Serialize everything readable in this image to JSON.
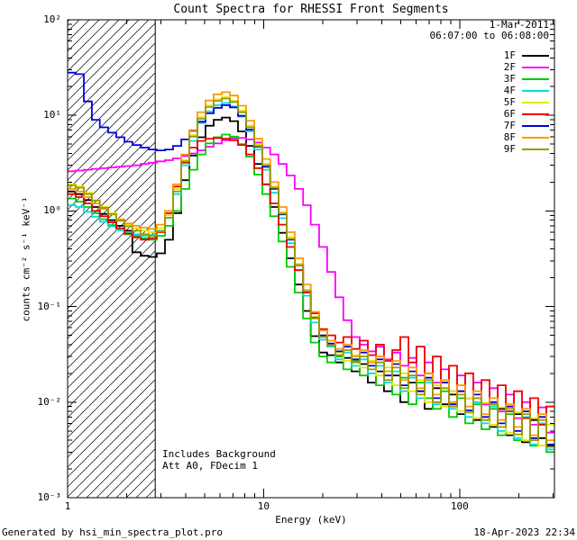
{
  "title": "Count Spectra for RHESSI Front Segments",
  "observation": {
    "date": "1-Mar-2011",
    "time_range": "06:07:00 to 06:08:00"
  },
  "annotations": {
    "line1": "Includes Background",
    "line2": "Att A0, FDecim 1"
  },
  "footer": {
    "left": "Generated by hsi_min_spectra_plot.pro",
    "right": "18-Apr-2023 22:34"
  },
  "chart_data": {
    "type": "line",
    "subtype": "histogram-step",
    "title": "Count Spectra for RHESSI Front Segments",
    "xlabel": "Energy (keV)",
    "ylabel": "counts cm⁻² s⁻¹ keV⁻¹",
    "xscale": "log",
    "yscale": "log",
    "xlim": [
      1,
      304.5
    ],
    "ylim": [
      0.001,
      100
    ],
    "x_ticks": [
      1,
      10,
      100
    ],
    "x_tick_labels": [
      "1",
      "10",
      "100"
    ],
    "y_ticks": [
      100,
      10,
      1,
      0.1,
      0.01,
      0.001
    ],
    "y_tick_labels": [
      "10²",
      "10¹",
      "10⁰",
      "10⁻¹",
      "10⁻²",
      "10⁻³"
    ],
    "grid": false,
    "legend_position": "top-right",
    "hatch_region": {
      "x_min": 1,
      "x_max": 2.8
    },
    "x_bin_edges": [
      1.0,
      1.1,
      1.21,
      1.33,
      1.46,
      1.61,
      1.77,
      1.95,
      2.14,
      2.36,
      2.59,
      2.85,
      3.14,
      3.45,
      3.8,
      4.18,
      4.59,
      5.05,
      5.56,
      6.12,
      6.73,
      7.4,
      8.14,
      8.95,
      9.85,
      10.8,
      11.9,
      13.1,
      14.4,
      15.9,
      17.4,
      19.2,
      21.1,
      23.2,
      25.5,
      28.1,
      30.9,
      34.0,
      37.4,
      41.1,
      45.3,
      49.8,
      54.8,
      60.2,
      66.3,
      72.9,
      80.2,
      88.2,
      97.0,
      106.7,
      117.4,
      129.1,
      142.0,
      156.2,
      171.9,
      189.1,
      208.0,
      228.8,
      251.6,
      276.8,
      304.5
    ],
    "series": [
      {
        "name": "1F",
        "color": "#000000",
        "values": [
          1.6,
          1.5,
          1.3,
          1.1,
          0.93,
          0.8,
          0.7,
          0.62,
          0.37,
          0.34,
          0.33,
          0.36,
          0.5,
          0.95,
          2.1,
          3.8,
          5.9,
          7.8,
          9.0,
          9.5,
          8.7,
          6.8,
          4.8,
          3.1,
          1.9,
          1.1,
          0.59,
          0.32,
          0.17,
          0.09,
          0.049,
          0.033,
          0.031,
          0.026,
          0.029,
          0.021,
          0.025,
          0.016,
          0.021,
          0.013,
          0.019,
          0.01,
          0.016,
          0.013,
          0.0085,
          0.014,
          0.0095,
          0.012,
          0.0075,
          0.011,
          0.0065,
          0.0095,
          0.0055,
          0.0085,
          0.0045,
          0.0075,
          0.0038,
          0.0065,
          0.0042,
          0.0035
        ]
      },
      {
        "name": "2F",
        "color": "#ff00ff",
        "values": [
          2.6,
          2.65,
          2.7,
          2.75,
          2.8,
          2.85,
          2.9,
          2.95,
          3.0,
          3.1,
          3.2,
          3.3,
          3.4,
          3.55,
          3.75,
          4.0,
          4.3,
          4.7,
          5.1,
          5.5,
          5.75,
          5.8,
          5.6,
          5.2,
          4.6,
          3.9,
          3.1,
          2.35,
          1.7,
          1.15,
          0.72,
          0.42,
          0.23,
          0.125,
          0.072,
          0.048,
          0.04,
          0.034,
          0.038,
          0.028,
          0.033,
          0.024,
          0.029,
          0.019,
          0.026,
          0.016,
          0.022,
          0.013,
          0.019,
          0.011,
          0.016,
          0.0095,
          0.014,
          0.008,
          0.012,
          0.0068,
          0.01,
          0.0058,
          0.0088,
          0.0048
        ]
      },
      {
        "name": "3F",
        "color": "#00cc00",
        "values": [
          1.35,
          1.25,
          1.1,
          0.95,
          0.82,
          0.71,
          0.63,
          0.57,
          0.55,
          0.52,
          0.5,
          0.55,
          0.7,
          1.0,
          1.7,
          2.7,
          3.9,
          5.1,
          5.9,
          6.3,
          6.0,
          5.0,
          3.7,
          2.4,
          1.5,
          0.88,
          0.48,
          0.26,
          0.14,
          0.075,
          0.042,
          0.03,
          0.026,
          0.03,
          0.022,
          0.027,
          0.019,
          0.024,
          0.015,
          0.021,
          0.012,
          0.018,
          0.0095,
          0.016,
          0.011,
          0.0085,
          0.013,
          0.007,
          0.011,
          0.006,
          0.0095,
          0.0052,
          0.0085,
          0.0045,
          0.0075,
          0.004,
          0.0068,
          0.0035,
          0.0058,
          0.003
        ]
      },
      {
        "name": "4F",
        "color": "#00dede",
        "values": [
          1.15,
          1.1,
          0.98,
          0.87,
          0.77,
          0.69,
          0.63,
          0.59,
          0.57,
          0.55,
          0.56,
          0.62,
          0.85,
          1.5,
          3.0,
          5.4,
          8.3,
          11.0,
          12.8,
          13.5,
          12.4,
          9.7,
          6.8,
          4.4,
          2.7,
          1.55,
          0.84,
          0.46,
          0.24,
          0.13,
          0.068,
          0.045,
          0.038,
          0.028,
          0.033,
          0.024,
          0.028,
          0.02,
          0.024,
          0.016,
          0.021,
          0.013,
          0.018,
          0.011,
          0.016,
          0.0095,
          0.014,
          0.0085,
          0.012,
          0.007,
          0.01,
          0.006,
          0.009,
          0.005,
          0.008,
          0.0042,
          0.007,
          0.0036,
          0.006,
          0.0032
        ]
      },
      {
        "name": "5F",
        "color": "#e6e600",
        "values": [
          1.9,
          1.8,
          1.55,
          1.3,
          1.1,
          0.95,
          0.82,
          0.72,
          0.66,
          0.62,
          0.6,
          0.66,
          0.9,
          1.7,
          3.4,
          6.2,
          9.6,
          12.7,
          14.7,
          15.5,
          14.2,
          11.2,
          7.8,
          5.0,
          3.1,
          1.8,
          0.97,
          0.53,
          0.28,
          0.15,
          0.078,
          0.05,
          0.04,
          0.033,
          0.027,
          0.031,
          0.023,
          0.027,
          0.019,
          0.023,
          0.015,
          0.02,
          0.013,
          0.017,
          0.01,
          0.015,
          0.009,
          0.013,
          0.008,
          0.011,
          0.0068,
          0.0098,
          0.0058,
          0.0088,
          0.0048,
          0.0078,
          0.004,
          0.0068,
          0.0035,
          0.0058
        ]
      },
      {
        "name": "6F",
        "color": "#ee0000",
        "values": [
          1.5,
          1.4,
          1.2,
          1.0,
          0.88,
          0.76,
          0.66,
          0.58,
          0.53,
          0.5,
          0.52,
          0.6,
          0.95,
          1.8,
          3.2,
          4.6,
          5.4,
          5.7,
          5.8,
          5.7,
          5.5,
          4.9,
          3.9,
          2.8,
          1.9,
          1.2,
          0.72,
          0.42,
          0.24,
          0.14,
          0.085,
          0.058,
          0.05,
          0.042,
          0.048,
          0.036,
          0.044,
          0.031,
          0.04,
          0.027,
          0.035,
          0.048,
          0.026,
          0.038,
          0.02,
          0.03,
          0.016,
          0.024,
          0.013,
          0.02,
          0.011,
          0.017,
          0.0095,
          0.015,
          0.008,
          0.013,
          0.0068,
          0.011,
          0.0058,
          0.009
        ]
      },
      {
        "name": "7F",
        "color": "#0000dd",
        "values": [
          28,
          27,
          14,
          9.0,
          7.5,
          6.6,
          5.9,
          5.3,
          4.9,
          4.6,
          4.4,
          4.3,
          4.4,
          4.8,
          5.6,
          6.9,
          8.6,
          10.5,
          12.0,
          12.8,
          12.1,
          9.9,
          7.1,
          4.7,
          2.9,
          1.7,
          0.92,
          0.5,
          0.27,
          0.145,
          0.076,
          0.05,
          0.041,
          0.034,
          0.038,
          0.028,
          0.033,
          0.024,
          0.028,
          0.019,
          0.025,
          0.015,
          0.021,
          0.013,
          0.018,
          0.011,
          0.016,
          0.0095,
          0.013,
          0.0082,
          0.012,
          0.007,
          0.01,
          0.006,
          0.009,
          0.005,
          0.008,
          0.0042,
          0.007,
          0.0036
        ]
      },
      {
        "name": "8F",
        "color": "#ff9900",
        "values": [
          1.7,
          1.6,
          1.4,
          1.2,
          1.05,
          0.92,
          0.82,
          0.74,
          0.7,
          0.67,
          0.65,
          0.72,
          1.0,
          1.9,
          3.9,
          7.0,
          10.8,
          14.3,
          16.6,
          17.5,
          16.1,
          12.6,
          8.8,
          5.7,
          3.5,
          2.0,
          1.1,
          0.6,
          0.32,
          0.17,
          0.088,
          0.056,
          0.044,
          0.036,
          0.04,
          0.03,
          0.035,
          0.026,
          0.03,
          0.021,
          0.027,
          0.017,
          0.023,
          0.014,
          0.02,
          0.012,
          0.017,
          0.01,
          0.015,
          0.009,
          0.013,
          0.0075,
          0.011,
          0.0065,
          0.0095,
          0.0055,
          0.0085,
          0.0045,
          0.0075,
          0.004
        ]
      },
      {
        "name": "9F",
        "color": "#999900",
        "values": [
          1.85,
          1.75,
          1.5,
          1.28,
          1.08,
          0.92,
          0.79,
          0.69,
          0.62,
          0.57,
          0.55,
          0.61,
          0.85,
          1.6,
          3.3,
          6.0,
          9.2,
          12.2,
          14.2,
          15.0,
          13.8,
          10.8,
          7.5,
          4.8,
          3.0,
          1.75,
          0.94,
          0.51,
          0.27,
          0.145,
          0.075,
          0.048,
          0.039,
          0.031,
          0.035,
          0.026,
          0.03,
          0.022,
          0.026,
          0.017,
          0.023,
          0.014,
          0.019,
          0.012,
          0.017,
          0.01,
          0.014,
          0.009,
          0.012,
          0.0078,
          0.011,
          0.0065,
          0.0095,
          0.0055,
          0.0085,
          0.0046,
          0.0075,
          0.004,
          0.0065,
          0.0034
        ]
      }
    ]
  }
}
